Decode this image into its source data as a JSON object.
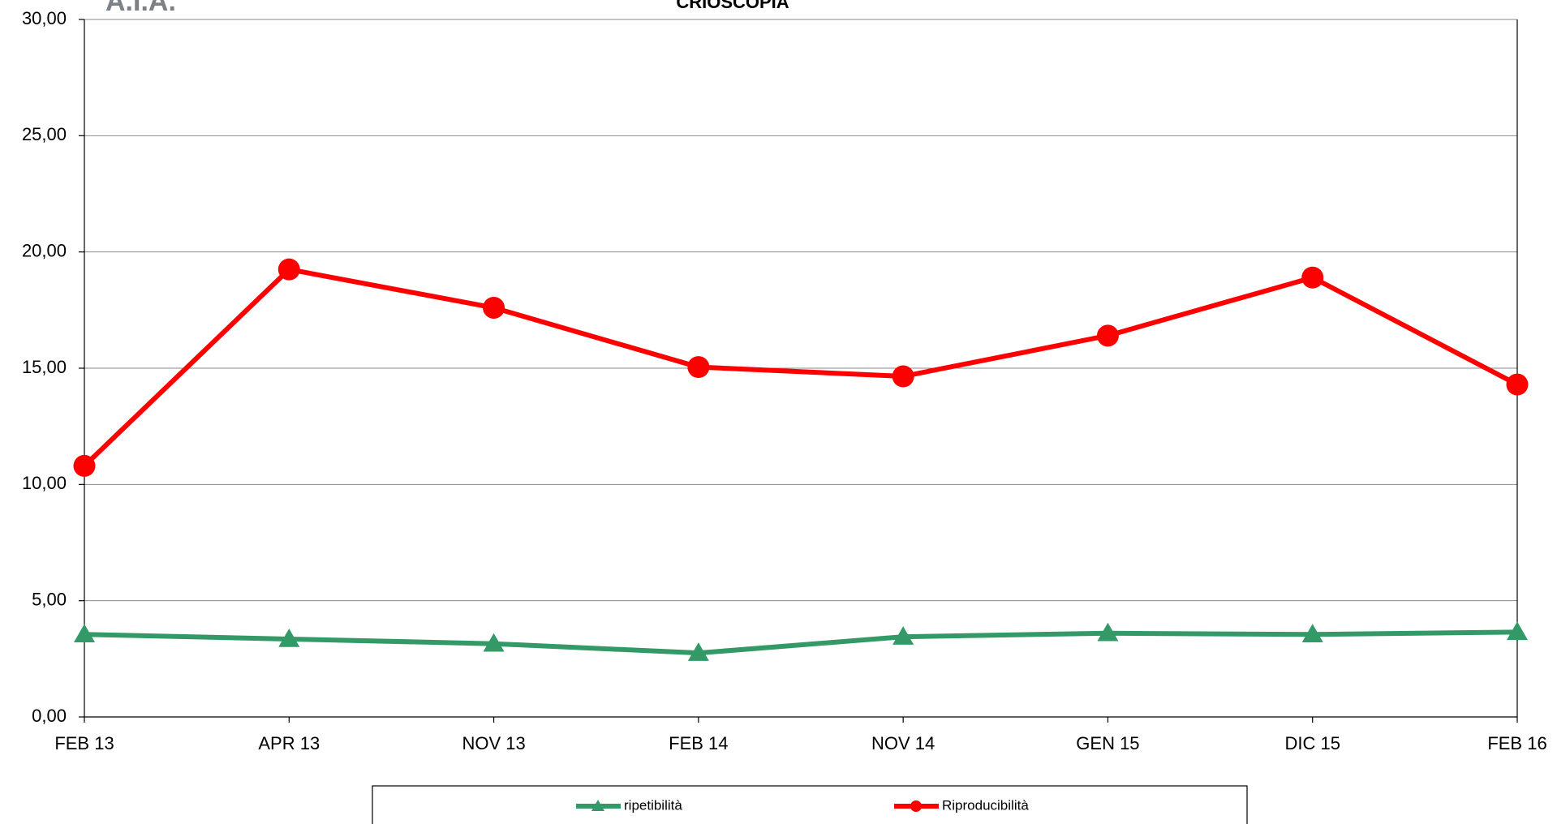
{
  "logo": "A.I.A.",
  "chart_data": {
    "type": "line",
    "title": "CRIOSCOPIA",
    "categories": [
      "FEB 13",
      "APR 13",
      "NOV 13",
      "FEB 14",
      "NOV 14",
      "GEN 15",
      "DIC 15",
      "FEB 16"
    ],
    "series": [
      {
        "name": "ripetibilità",
        "color": "#339966",
        "marker": "triangle",
        "values": [
          3.55,
          3.35,
          3.15,
          2.75,
          3.45,
          3.6,
          3.55,
          3.65
        ]
      },
      {
        "name": "Riproducibilità",
        "color": "#ff0000",
        "marker": "circle",
        "values": [
          10.8,
          19.25,
          17.6,
          15.05,
          14.65,
          16.4,
          18.9,
          14.3
        ]
      }
    ],
    "ylim": [
      0,
      30
    ],
    "yticks": [
      {
        "value": 0,
        "label": "0,00"
      },
      {
        "value": 5,
        "label": "5,00"
      },
      {
        "value": 10,
        "label": "10,00"
      },
      {
        "value": 15,
        "label": "15,00"
      },
      {
        "value": 20,
        "label": "20,00"
      },
      {
        "value": 25,
        "label": "25,00"
      },
      {
        "value": 30,
        "label": "30,00"
      }
    ],
    "grid": true,
    "legend": "bottom"
  }
}
